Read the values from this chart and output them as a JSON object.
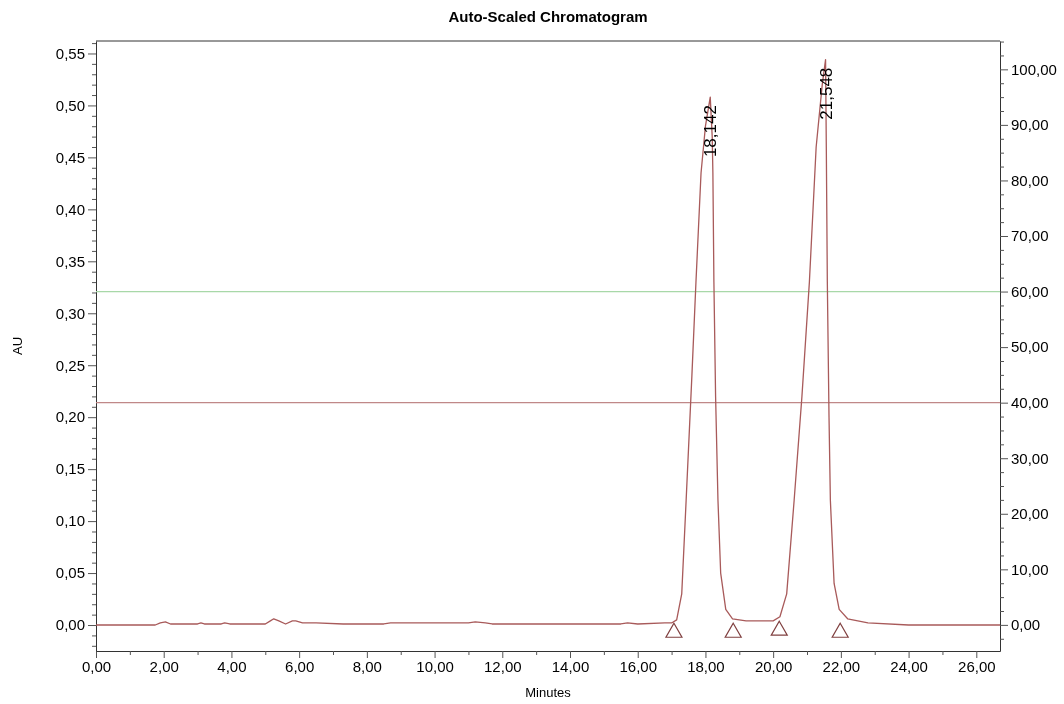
{
  "chart_data": {
    "type": "line",
    "title": "Auto-Scaled Chromatogram",
    "xlabel": "Minutes",
    "ylabel": "AU",
    "xlim": [
      0,
      26.7
    ],
    "ylim": [
      -0.025,
      0.562
    ],
    "y2lim": [
      -4.7,
      105.1
    ],
    "xticks": [
      {
        "value": 0,
        "label": "0,00"
      },
      {
        "value": 1,
        "label": null
      },
      {
        "value": 2,
        "label": "2,00"
      },
      {
        "value": 3,
        "label": null
      },
      {
        "value": 4,
        "label": "4,00"
      },
      {
        "value": 5,
        "label": null
      },
      {
        "value": 6,
        "label": "6,00"
      },
      {
        "value": 7,
        "label": null
      },
      {
        "value": 8,
        "label": "8,00"
      },
      {
        "value": 9,
        "label": null
      },
      {
        "value": 10,
        "label": "10,00"
      },
      {
        "value": 11,
        "label": null
      },
      {
        "value": 12,
        "label": "12,00"
      },
      {
        "value": 13,
        "label": null
      },
      {
        "value": 14,
        "label": "14,00"
      },
      {
        "value": 15,
        "label": null
      },
      {
        "value": 16,
        "label": "16,00"
      },
      {
        "value": 17,
        "label": null
      },
      {
        "value": 18,
        "label": "18,00"
      },
      {
        "value": 19,
        "label": null
      },
      {
        "value": 20,
        "label": "20,00"
      },
      {
        "value": 21,
        "label": null
      },
      {
        "value": 22,
        "label": "22,00"
      },
      {
        "value": 23,
        "label": null
      },
      {
        "value": 24,
        "label": "24,00"
      },
      {
        "value": 25,
        "label": null
      },
      {
        "value": 26,
        "label": "26,00"
      }
    ],
    "yticks": [
      {
        "value": -0.02,
        "label": null
      },
      {
        "value": -0.01,
        "label": null
      },
      {
        "value": 0,
        "label": "0,00"
      },
      {
        "value": 0.01,
        "label": null
      },
      {
        "value": 0.02,
        "label": null
      },
      {
        "value": 0.03,
        "label": null
      },
      {
        "value": 0.04,
        "label": null
      },
      {
        "value": 0.05,
        "label": "0,05"
      },
      {
        "value": 0.06,
        "label": null
      },
      {
        "value": 0.07,
        "label": null
      },
      {
        "value": 0.08,
        "label": null
      },
      {
        "value": 0.09,
        "label": null
      },
      {
        "value": 0.1,
        "label": "0,10"
      },
      {
        "value": 0.11,
        "label": null
      },
      {
        "value": 0.12,
        "label": null
      },
      {
        "value": 0.13,
        "label": null
      },
      {
        "value": 0.14,
        "label": null
      },
      {
        "value": 0.15,
        "label": "0,15"
      },
      {
        "value": 0.16,
        "label": null
      },
      {
        "value": 0.17,
        "label": null
      },
      {
        "value": 0.18,
        "label": null
      },
      {
        "value": 0.19,
        "label": null
      },
      {
        "value": 0.2,
        "label": "0,20"
      },
      {
        "value": 0.21,
        "label": null
      },
      {
        "value": 0.22,
        "label": null
      },
      {
        "value": 0.23,
        "label": null
      },
      {
        "value": 0.24,
        "label": null
      },
      {
        "value": 0.25,
        "label": "0,25"
      },
      {
        "value": 0.26,
        "label": null
      },
      {
        "value": 0.27,
        "label": null
      },
      {
        "value": 0.28,
        "label": null
      },
      {
        "value": 0.29,
        "label": null
      },
      {
        "value": 0.3,
        "label": "0,30"
      },
      {
        "value": 0.31,
        "label": null
      },
      {
        "value": 0.32,
        "label": null
      },
      {
        "value": 0.33,
        "label": null
      },
      {
        "value": 0.34,
        "label": null
      },
      {
        "value": 0.35,
        "label": "0,35"
      },
      {
        "value": 0.36,
        "label": null
      },
      {
        "value": 0.37,
        "label": null
      },
      {
        "value": 0.38,
        "label": null
      },
      {
        "value": 0.39,
        "label": null
      },
      {
        "value": 0.4,
        "label": "0,40"
      },
      {
        "value": 0.41,
        "label": null
      },
      {
        "value": 0.42,
        "label": null
      },
      {
        "value": 0.43,
        "label": null
      },
      {
        "value": 0.44,
        "label": null
      },
      {
        "value": 0.45,
        "label": "0,45"
      },
      {
        "value": 0.46,
        "label": null
      },
      {
        "value": 0.47,
        "label": null
      },
      {
        "value": 0.48,
        "label": null
      },
      {
        "value": 0.49,
        "label": null
      },
      {
        "value": 0.5,
        "label": "0,50"
      },
      {
        "value": 0.51,
        "label": null
      },
      {
        "value": 0.52,
        "label": null
      },
      {
        "value": 0.53,
        "label": null
      },
      {
        "value": 0.54,
        "label": null
      },
      {
        "value": 0.55,
        "label": "0,55"
      },
      {
        "value": 0.56,
        "label": null
      }
    ],
    "y2ticks": [
      {
        "value": -2.5,
        "label": null
      },
      {
        "value": 0,
        "label": "0,00"
      },
      {
        "value": 2.5,
        "label": null
      },
      {
        "value": 5,
        "label": null
      },
      {
        "value": 7.5,
        "label": null
      },
      {
        "value": 10,
        "label": "10,00"
      },
      {
        "value": 12.5,
        "label": null
      },
      {
        "value": 15,
        "label": null
      },
      {
        "value": 17.5,
        "label": null
      },
      {
        "value": 20,
        "label": "20,00"
      },
      {
        "value": 22.5,
        "label": null
      },
      {
        "value": 25,
        "label": null
      },
      {
        "value": 27.5,
        "label": null
      },
      {
        "value": 30,
        "label": "30,00"
      },
      {
        "value": 32.5,
        "label": null
      },
      {
        "value": 35,
        "label": null
      },
      {
        "value": 37.5,
        "label": null
      },
      {
        "value": 40,
        "label": "40,00"
      },
      {
        "value": 42.5,
        "label": null
      },
      {
        "value": 45,
        "label": null
      },
      {
        "value": 47.5,
        "label": null
      },
      {
        "value": 50,
        "label": "50,00"
      },
      {
        "value": 52.5,
        "label": null
      },
      {
        "value": 55,
        "label": null
      },
      {
        "value": 57.5,
        "label": null
      },
      {
        "value": 60,
        "label": "60,00"
      },
      {
        "value": 62.5,
        "label": null
      },
      {
        "value": 65,
        "label": null
      },
      {
        "value": 67.5,
        "label": null
      },
      {
        "value": 70,
        "label": "70,00"
      },
      {
        "value": 72.5,
        "label": null
      },
      {
        "value": 75,
        "label": null
      },
      {
        "value": 77.5,
        "label": null
      },
      {
        "value": 80,
        "label": "80,00"
      },
      {
        "value": 82.5,
        "label": null
      },
      {
        "value": 85,
        "label": null
      },
      {
        "value": 87.5,
        "label": null
      },
      {
        "value": 90,
        "label": "90,00"
      },
      {
        "value": 92.5,
        "label": null
      },
      {
        "value": 95,
        "label": null
      },
      {
        "value": 97.5,
        "label": null
      },
      {
        "value": 100,
        "label": "100,00"
      },
      {
        "value": 102.5,
        "label": null
      },
      {
        "value": 105,
        "label": null
      }
    ],
    "series": [
      {
        "color": "#a85a5a",
        "x": [
          0,
          1.75,
          1.9,
          2.05,
          2.2,
          3.0,
          3.1,
          3.2,
          3.7,
          3.8,
          3.95,
          5.0,
          5.15,
          5.25,
          5.4,
          5.6,
          5.8,
          5.9,
          6.1,
          6.5,
          7.3,
          8.5,
          8.7,
          9.5,
          10.5,
          11.0,
          11.2,
          11.5,
          11.7,
          15.5,
          15.7,
          16.0,
          16.8,
          17.0,
          17.15,
          17.3,
          17.43,
          17.6,
          17.72,
          17.87,
          18.0,
          18.142,
          18.2,
          18.22,
          18.25,
          18.3,
          18.37,
          18.45,
          18.6,
          18.8,
          19.2,
          20.0,
          20.2,
          20.4,
          20.62,
          20.85,
          21.07,
          21.27,
          21.45,
          21.548,
          21.57,
          21.6,
          21.65,
          21.69,
          21.8,
          21.95,
          22.2,
          22.8,
          24.0,
          26.7
        ],
        "values": [
          0,
          0,
          0.002,
          0.003,
          0.001,
          0.001,
          0.002,
          0.001,
          0.001,
          0.002,
          0.001,
          0.001,
          0.004,
          0.006,
          0.004,
          0.001,
          0.004,
          0.004,
          0.002,
          0.002,
          0.001,
          0.001,
          0.002,
          0.002,
          0.002,
          0.002,
          0.003,
          0.002,
          0.001,
          0.001,
          0.002,
          0.001,
          0.002,
          0.002,
          0.005,
          0.03,
          0.12,
          0.24,
          0.33,
          0.435,
          0.48,
          0.508,
          0.47,
          0.435,
          0.33,
          0.22,
          0.12,
          0.05,
          0.015,
          0.006,
          0.004,
          0.004,
          0.008,
          0.03,
          0.12,
          0.22,
          0.33,
          0.46,
          0.52,
          0.544,
          0.46,
          0.33,
          0.2,
          0.12,
          0.04,
          0.015,
          0.006,
          0.002,
          0,
          0
        ]
      },
      {
        "type": "scatter",
        "marker": "triangle",
        "color": "#804040",
        "x": [
          17.07,
          18.82,
          20.18,
          21.98
        ],
        "values": [
          -0.006,
          -0.006,
          -0.004,
          -0.006
        ]
      }
    ],
    "ref_lines": [
      {
        "axis": "y2",
        "value": 60,
        "color": "#a8d8a8"
      },
      {
        "axis": "y2",
        "value": 40,
        "color": "#c08888"
      }
    ],
    "annotations": [
      {
        "text": "18,142",
        "x": 18.142,
        "y": 0.508
      },
      {
        "text": "21,548",
        "x": 21.548,
        "y": 0.544
      }
    ]
  }
}
